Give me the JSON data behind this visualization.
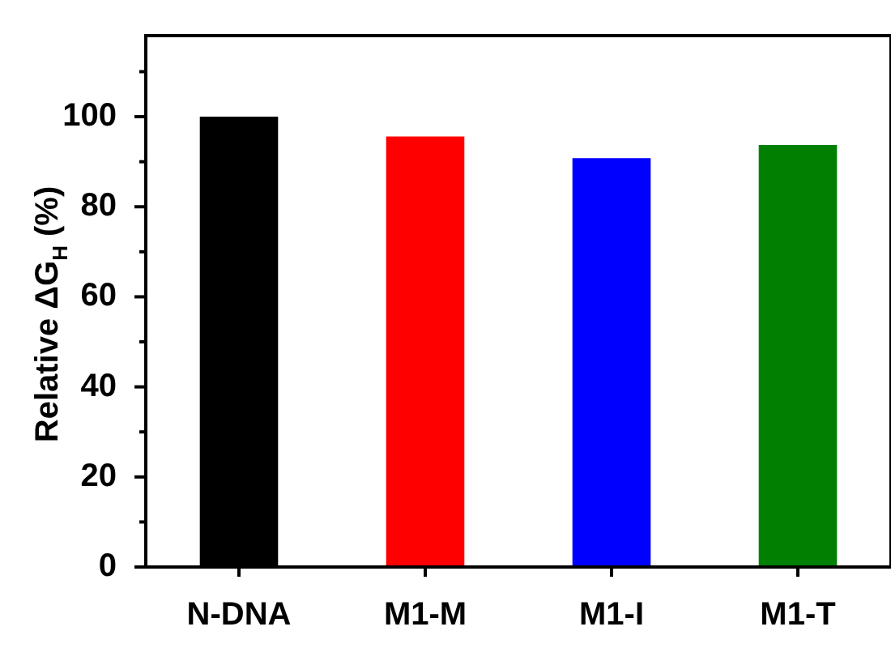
{
  "chart_data": {
    "type": "bar",
    "ylabel": "Relative ΔG$_{H}$ (%)",
    "categories": [
      "N-DNA",
      "M1-M",
      "M1-I",
      "M1-T"
    ],
    "values": [
      100,
      95.6,
      90.8,
      93.7
    ],
    "colors": [
      "#000000",
      "#ff0000",
      "#0000ff",
      "#007f00"
    ],
    "ylim": [
      0,
      118
    ],
    "yticks": [
      0,
      {
        "value": 10,
        "label": null
      },
      20,
      {
        "value": 30,
        "label": null
      },
      40,
      {
        "value": 50,
        "label": null
      },
      60,
      {
        "value": 70,
        "label": null
      },
      80,
      {
        "value": 90,
        "label": null
      },
      100,
      {
        "value": 110,
        "label": null
      }
    ]
  }
}
